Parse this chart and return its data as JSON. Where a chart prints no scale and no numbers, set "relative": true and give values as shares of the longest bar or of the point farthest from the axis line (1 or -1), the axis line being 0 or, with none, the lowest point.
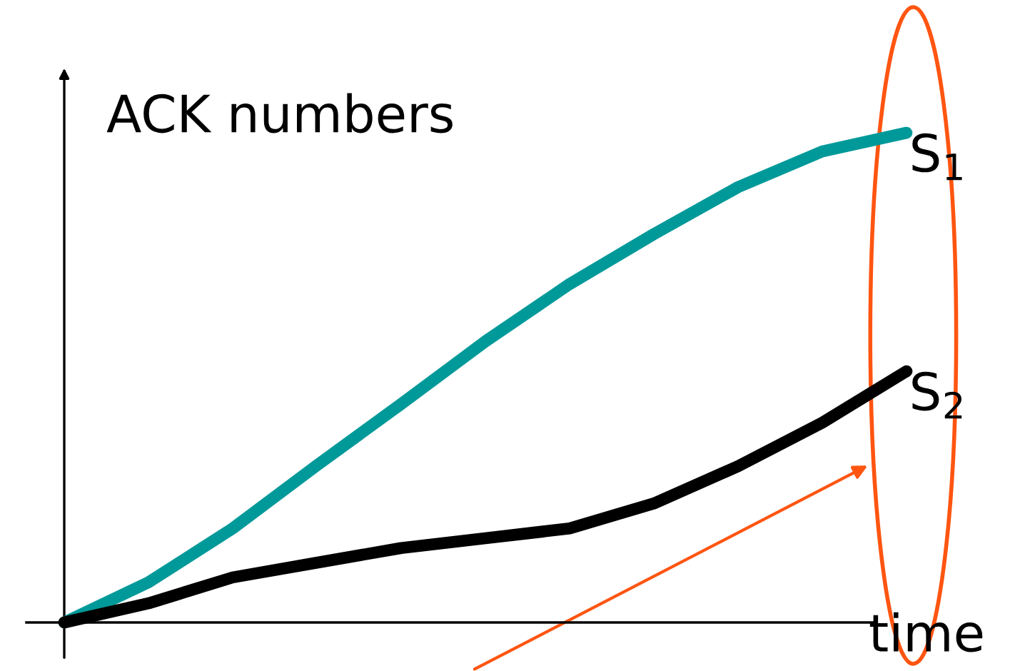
{
  "chart_data": {
    "type": "line",
    "relative": true,
    "ylabel": "ACK numbers",
    "xlabel": "time",
    "categories": [
      null,
      null,
      null,
      null,
      null,
      null,
      null,
      null,
      null,
      null,
      null
    ],
    "series": [
      {
        "name": "S$_{1}$",
        "color": "#009999",
        "values": [
          0,
          0.082,
          0.192,
          0.321,
          0.446,
          0.574,
          0.691,
          0.793,
          0.889,
          0.962,
          1
        ]
      },
      {
        "name": "S$_{2}$",
        "color": "#000000",
        "values": [
          0,
          0.039,
          0.092,
          0.122,
          0.152,
          0.172,
          0.192,
          0.243,
          0.319,
          0.408,
          0.513
        ]
      }
    ],
    "grid": false,
    "legend": false,
    "marker": "none",
    "line_style": "solid"
  }
}
